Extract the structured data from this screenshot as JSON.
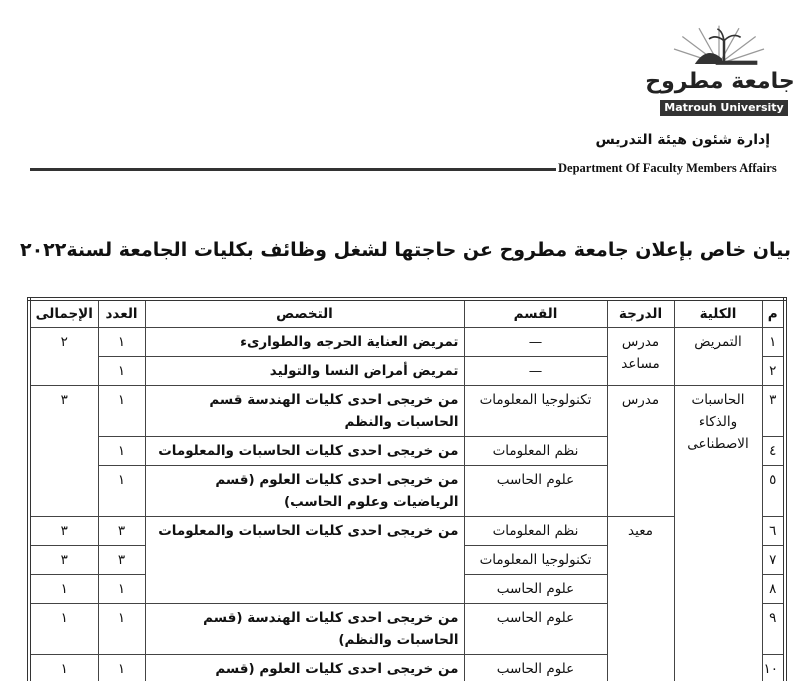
{
  "header": {
    "logo_text_ar": "جامعة مطروح",
    "logo_text_en": "Matrouh University",
    "dept_ar": "إدارة شئون هيئة التدريس",
    "dept_en": "Department Of Faculty Members Affairs"
  },
  "title": "بيان خاص بإعلان جامعة مطروح عن حاجتها لشغل وظائف بكليات الجامعة لسنة٢٠٢٢",
  "table": {
    "headers": {
      "num": "م",
      "college": "الكلية",
      "degree": "الدرجة",
      "dept": "القسم",
      "spec": "التخصص",
      "count": "العدد",
      "total": "الإجمالى"
    },
    "colleges": [
      "التمريض",
      "الحاسبات والذكاء الاصطناعى"
    ],
    "degrees": [
      "مدرس مساعد",
      "مدرس",
      "معيد"
    ],
    "rows": [
      {
        "num": "١",
        "dept": "—",
        "spec": "تمريض العناية الحرجه والطوارىء",
        "count": "١",
        "total": "٢"
      },
      {
        "num": "٢",
        "dept": "—",
        "spec": "تمريض أمراض النسا والتوليد",
        "count": "١"
      },
      {
        "num": "٣",
        "dept": "تكنولوجيا المعلومات",
        "spec": "من خريجى احدى كليات الهندسة قسم الحاسبات والنظم",
        "count": "١",
        "total": "٣"
      },
      {
        "num": "٤",
        "dept": "نظم المعلومات",
        "spec": "من خريجى احدى كليات الحاسبات والمعلومات",
        "count": "١"
      },
      {
        "num": "٥",
        "dept": "علوم الحاسب",
        "spec": "من خريجى احدى كليات العلوم (قسم الرياضيات وعلوم الحاسب)",
        "count": "١"
      },
      {
        "num": "٦",
        "dept": "نظم المعلومات",
        "spec": "من خريجى احدى كليات الحاسبات والمعلومات",
        "count": "٣",
        "total": "٣"
      },
      {
        "num": "٧",
        "dept": "تكنولوجيا المعلومات",
        "count": "٣",
        "total": "٣"
      },
      {
        "num": "٨",
        "dept": "علوم الحاسب",
        "count": "١",
        "total": "١"
      },
      {
        "num": "٩",
        "dept": "علوم الحاسب",
        "spec": "من خريجى احدى كليات الهندسة (قسم الحاسبات والنظم)",
        "count": "١",
        "total": "١"
      },
      {
        "num": "١٠",
        "dept": "علوم الحاسب",
        "spec": "من خريجى احدى كليات العلوم (قسم الرياضيات وعلوم الحاسب)",
        "count": "١",
        "total": "١"
      }
    ]
  }
}
